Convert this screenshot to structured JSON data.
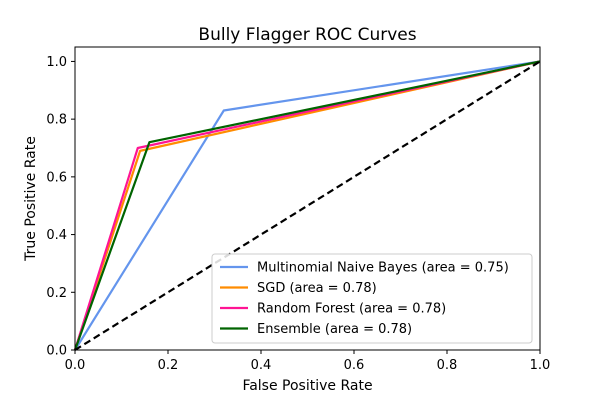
{
  "chart_data": {
    "type": "line",
    "title": "Bully Flagger ROC Curves",
    "xlabel": "False Positive Rate",
    "ylabel": "True Positive Rate",
    "xlim": [
      0.0,
      1.0
    ],
    "ylim": [
      0.0,
      1.05
    ],
    "x_ticks": [
      "0.0",
      "0.2",
      "0.4",
      "0.6",
      "0.8",
      "1.0"
    ],
    "y_ticks": [
      "0.0",
      "0.2",
      "0.4",
      "0.6",
      "0.8",
      "1.0"
    ],
    "grid": false,
    "legend_position": "lower-right",
    "series": [
      {
        "name": "Multinomial Naive Bayes (area = 0.75)",
        "color": "#6495ed",
        "x": [
          0.0,
          0.32,
          1.0
        ],
        "y": [
          0.0,
          0.83,
          1.0
        ]
      },
      {
        "name": "SGD (area = 0.78)",
        "color": "#ff8c00",
        "x": [
          0.0,
          0.14,
          1.0
        ],
        "y": [
          0.0,
          0.69,
          1.0
        ]
      },
      {
        "name": "Random Forest (area = 0.78)",
        "color": "#ff1493",
        "x": [
          0.0,
          0.135,
          1.0
        ],
        "y": [
          0.0,
          0.7,
          1.0
        ]
      },
      {
        "name": "Ensemble (area = 0.78)",
        "color": "#006400",
        "x": [
          0.0,
          0.16,
          1.0
        ],
        "y": [
          0.0,
          0.72,
          1.0
        ]
      }
    ],
    "reference_line": {
      "color": "#000000",
      "style": "dashed",
      "x": [
        0.0,
        1.0
      ],
      "y": [
        0.0,
        1.0
      ]
    }
  }
}
